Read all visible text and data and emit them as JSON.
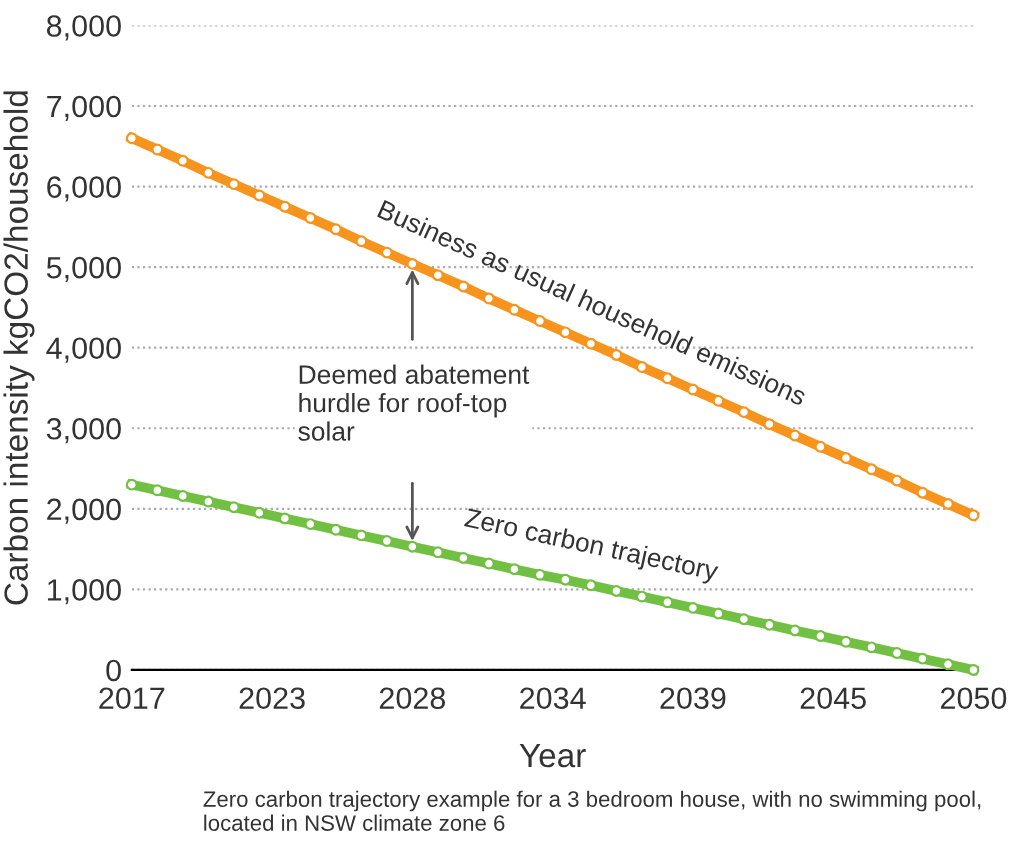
{
  "chart_data": {
    "type": "line",
    "xlabel": "Year",
    "ylabel": "Carbon intensity kgCO2/household",
    "x": [
      2017,
      2018,
      2019,
      2020,
      2021,
      2022,
      2023,
      2024,
      2025,
      2026,
      2027,
      2028,
      2029,
      2030,
      2031,
      2032,
      2033,
      2034,
      2035,
      2036,
      2037,
      2038,
      2039,
      2040,
      2041,
      2042,
      2043,
      2044,
      2045,
      2046,
      2047,
      2048,
      2049,
      2050
    ],
    "series": [
      {
        "name": "Business as usual household emissions",
        "color": "#f7941d",
        "values": [
          6600,
          6460,
          6320,
          6170,
          6030,
          5890,
          5750,
          5610,
          5470,
          5320,
          5180,
          5040,
          4900,
          4760,
          4610,
          4470,
          4330,
          4190,
          4050,
          3910,
          3760,
          3620,
          3480,
          3340,
          3200,
          3050,
          2910,
          2770,
          2630,
          2490,
          2350,
          2200,
          2060,
          1920
        ]
      },
      {
        "name": "Zero carbon trajectory",
        "color": "#72c043",
        "values": [
          2300,
          2230,
          2160,
          2090,
          2020,
          1950,
          1880,
          1810,
          1740,
          1670,
          1600,
          1530,
          1460,
          1390,
          1320,
          1250,
          1180,
          1120,
          1050,
          980,
          910,
          840,
          770,
          700,
          630,
          560,
          490,
          420,
          350,
          280,
          210,
          140,
          70,
          0
        ]
      }
    ],
    "xlim": [
      2017,
      2050
    ],
    "xticks": [
      2017,
      {
        "value": 2022.5,
        "label": "2023"
      },
      2028,
      {
        "value": 2033.5,
        "label": "2034"
      },
      2039,
      {
        "value": 2044.5,
        "label": "2045"
      },
      2050
    ],
    "ylim": [
      0,
      8000
    ],
    "yticks": [
      {
        "value": 0,
        "label": "0"
      },
      {
        "value": 1000,
        "label": "1,000"
      },
      {
        "value": 2000,
        "label": "2,000"
      },
      {
        "value": 3000,
        "label": "3,000"
      },
      {
        "value": 4000,
        "label": "4,000"
      },
      {
        "value": 5000,
        "label": "5,000"
      },
      {
        "value": 6000,
        "label": "6,000"
      },
      {
        "value": 7000,
        "label": "7,000"
      },
      {
        "value": 8000,
        "label": "8,000"
      }
    ],
    "grid": "y",
    "legend": false,
    "marker": "circle",
    "line_style": "solid",
    "annotations": [
      {
        "text": "Deemed abatement\nhurdle for roof-top\nsolar",
        "x": 2028,
        "y": 5040
      },
      "Zero carbon trajectory example for a 3 bedroom house, with no swimming pool, located in NSW climate zone 6"
    ]
  }
}
